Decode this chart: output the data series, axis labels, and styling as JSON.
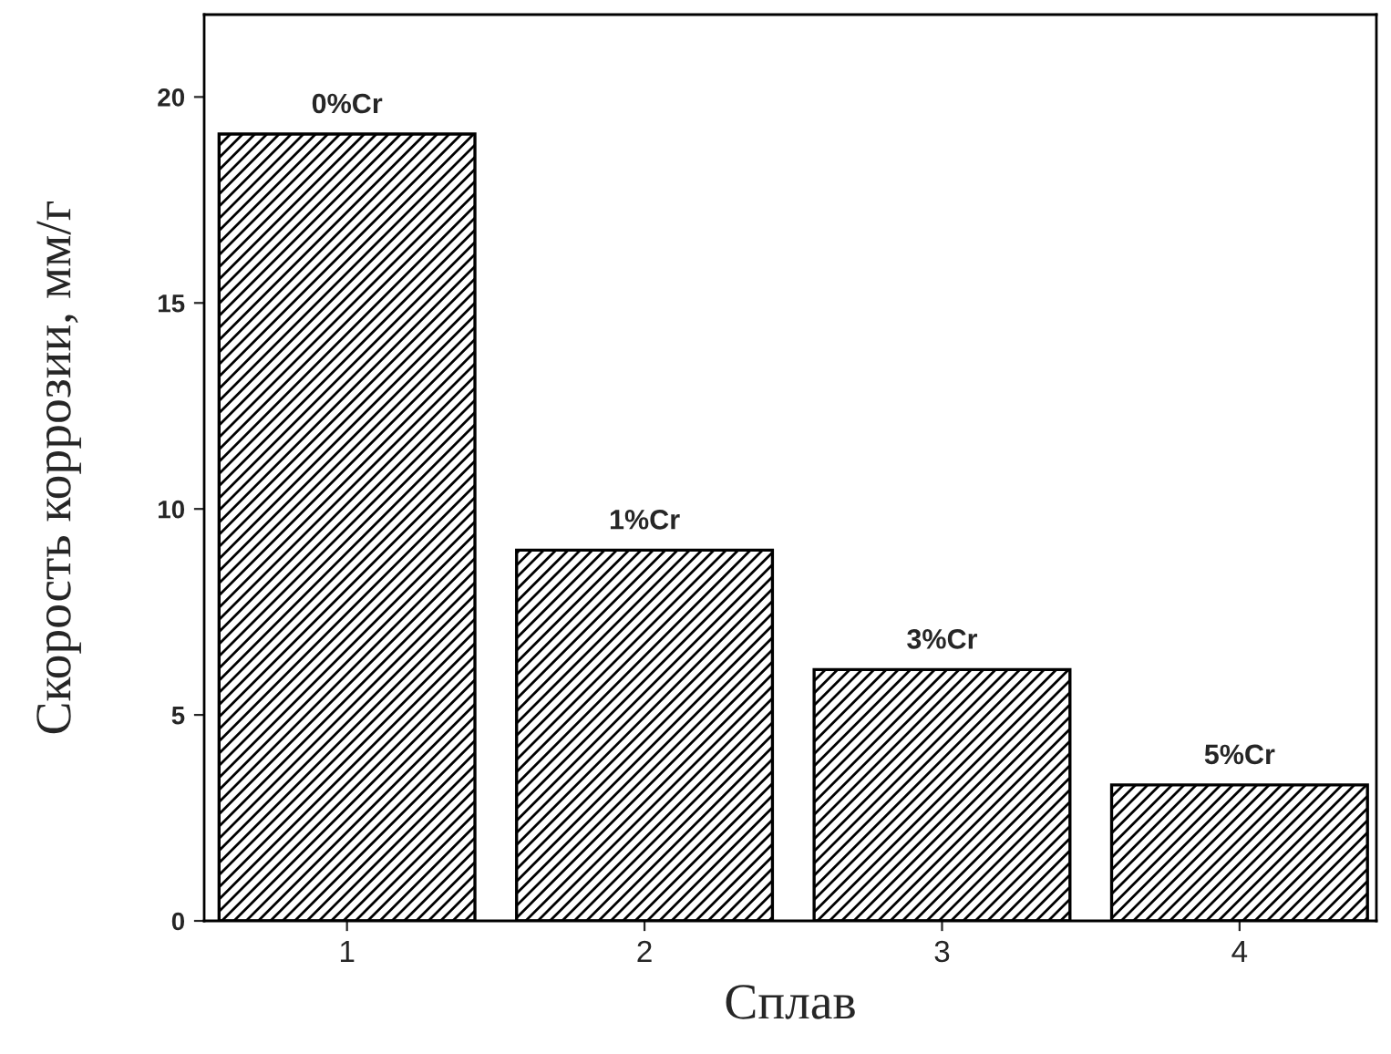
{
  "chart_data": {
    "type": "bar",
    "xlabel": "Сплав",
    "ylabel": "Скорость коррозии, мм/г",
    "categories": [
      "1",
      "2",
      "3",
      "4"
    ],
    "values": [
      19.1,
      9.0,
      6.1,
      3.3
    ],
    "annotations": [
      {
        "text": "0%Cr",
        "x": "1",
        "y": 19.1
      },
      {
        "text": "1%Cr",
        "x": "2",
        "y": 9.0
      },
      {
        "text": "3%Cr",
        "x": "3",
        "y": 6.1
      },
      {
        "text": "5%Cr",
        "x": "4",
        "y": 3.3
      }
    ],
    "color": "#000000",
    "ylim": [
      0,
      22
    ],
    "yticks": [
      0,
      5,
      10,
      15,
      20
    ],
    "grid": false,
    "legend": false
  }
}
